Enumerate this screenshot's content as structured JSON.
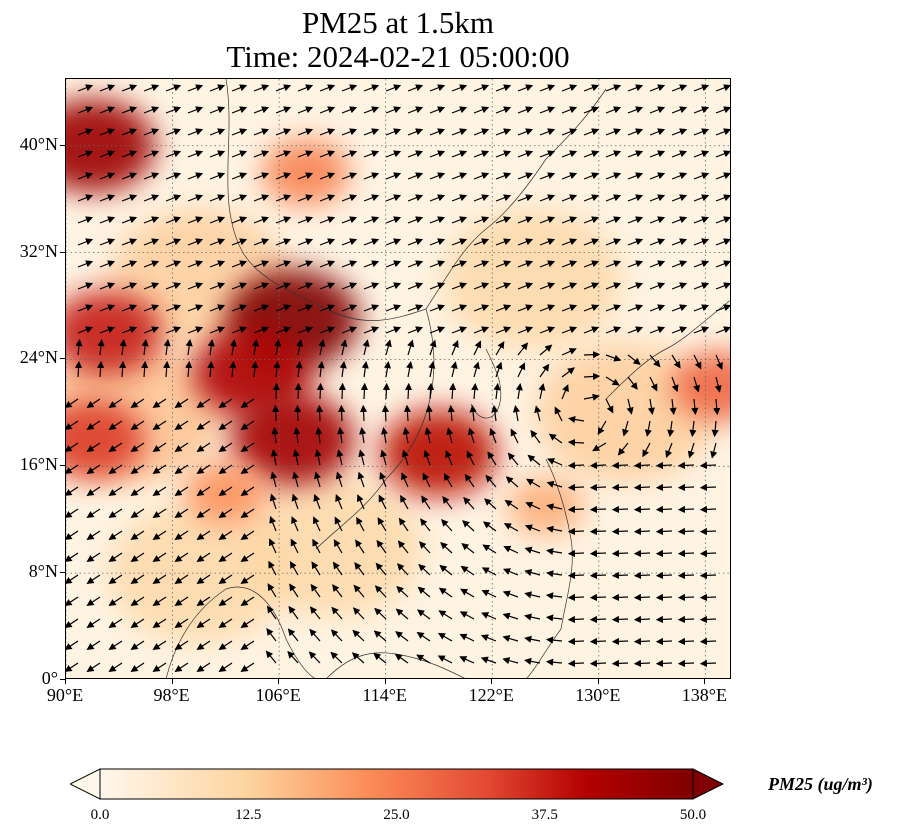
{
  "title": {
    "line1": "PM25 at 1.5km",
    "line2": "Time: 2024-02-21 05:00:00"
  },
  "map": {
    "lon_range": [
      90,
      140
    ],
    "lat_range": [
      0,
      45
    ],
    "y_ticks": [
      {
        "label": "0°",
        "lat": 0
      },
      {
        "label": "8°N",
        "lat": 8
      },
      {
        "label": "16°N",
        "lat": 16
      },
      {
        "label": "24°N",
        "lat": 24
      },
      {
        "label": "32°N",
        "lat": 32
      },
      {
        "label": "40°N",
        "lat": 40
      }
    ],
    "x_ticks": [
      {
        "label": "90°E",
        "lon": 90
      },
      {
        "label": "98°E",
        "lon": 98
      },
      {
        "label": "106°E",
        "lon": 106
      },
      {
        "label": "114°E",
        "lon": 114
      },
      {
        "label": "122°E",
        "lon": 122
      },
      {
        "label": "130°E",
        "lon": 130
      },
      {
        "label": "138°E",
        "lon": 138
      }
    ],
    "gridlines": "dotted",
    "pollution_hotspots": [
      {
        "lon": 92,
        "lat": 40,
        "value": 45
      },
      {
        "lon": 93,
        "lat": 26,
        "value": 38
      },
      {
        "lon": 92,
        "lat": 18,
        "value": 34
      },
      {
        "lon": 107,
        "lat": 27,
        "value": 50
      },
      {
        "lon": 104,
        "lat": 23,
        "value": 42
      },
      {
        "lon": 107,
        "lat": 18,
        "value": 44
      },
      {
        "lon": 118,
        "lat": 17,
        "value": 40
      },
      {
        "lon": 102,
        "lat": 14,
        "value": 22
      },
      {
        "lon": 108,
        "lat": 38,
        "value": 24
      },
      {
        "lon": 139,
        "lat": 22,
        "value": 28
      },
      {
        "lon": 126,
        "lat": 13,
        "value": 18
      }
    ],
    "colors": {
      "low": "#fff5eb",
      "mid": "#fd8d3c",
      "high": "#7f0000"
    }
  },
  "colorbar": {
    "label": "PM25 (ug/m³)",
    "min": 0,
    "max": 50,
    "ticks": [
      "0.0",
      "12.5",
      "25.0",
      "37.5",
      "50.0"
    ],
    "colormap": "OrRd"
  }
}
